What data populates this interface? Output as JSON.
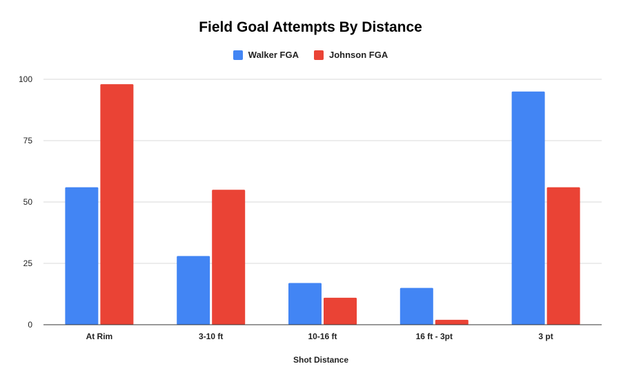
{
  "chart_data": {
    "type": "bar",
    "title": "Field Goal Attempts By Distance",
    "xlabel": "Shot Distance",
    "ylabel": "",
    "categories": [
      "At Rim",
      "3-10 ft",
      "10-16 ft",
      "16 ft - 3pt",
      "3 pt"
    ],
    "series": [
      {
        "name": "Walker FGA",
        "color": "#4285f4",
        "values": [
          56,
          28,
          17,
          15,
          95
        ]
      },
      {
        "name": "Johnson FGA",
        "color": "#ea4335",
        "values": [
          98,
          55,
          11,
          2,
          56
        ]
      }
    ],
    "ylim": [
      0,
      100
    ],
    "yticks": [
      0,
      25,
      50,
      75,
      100
    ],
    "grid": true,
    "legend_position": "top"
  }
}
